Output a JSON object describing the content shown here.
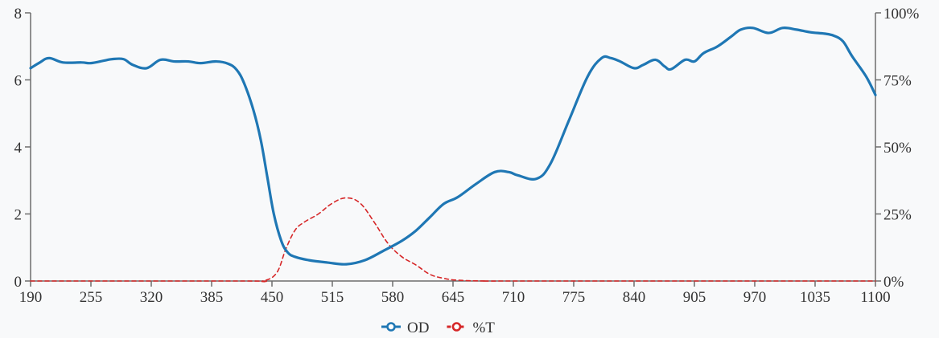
{
  "chart_data": {
    "type": "line",
    "title": "",
    "xlabel": "",
    "ylabel": "",
    "y2label": "",
    "grid": false,
    "legend_position": "bottom-center",
    "xlim": [
      190,
      1100
    ],
    "ylim": [
      0,
      8
    ],
    "y2lim": [
      0,
      100
    ],
    "x_ticks": [
      190,
      255,
      320,
      385,
      450,
      515,
      580,
      645,
      710,
      775,
      840,
      905,
      970,
      1035,
      1100
    ],
    "y_ticks": [
      0,
      2,
      4,
      6,
      8
    ],
    "y2_ticks": [
      0,
      25,
      50,
      75,
      100
    ],
    "y2_tick_labels": [
      "0%",
      "25%",
      "50%",
      "75%",
      "100%"
    ],
    "series": [
      {
        "name": "OD",
        "axis": "left",
        "color": "#1f77b4",
        "style": "solid",
        "x": [
          190,
          200,
          210,
          225,
          245,
          255,
          270,
          278,
          290,
          300,
          315,
          330,
          345,
          360,
          373,
          390,
          403,
          412,
          420,
          430,
          438,
          445,
          452,
          460,
          467,
          475,
          490,
          510,
          530,
          550,
          570,
          590,
          605,
          620,
          635,
          650,
          670,
          690,
          705,
          715,
          735,
          750,
          770,
          790,
          805,
          815,
          825,
          840,
          850,
          863,
          873,
          880,
          895,
          905,
          915,
          930,
          945,
          955,
          968,
          985,
          1000,
          1015,
          1030,
          1045,
          1055,
          1065,
          1075,
          1090,
          1100
        ],
        "y": [
          6.35,
          6.52,
          6.65,
          6.52,
          6.52,
          6.5,
          6.58,
          6.62,
          6.62,
          6.45,
          6.35,
          6.6,
          6.55,
          6.55,
          6.5,
          6.55,
          6.48,
          6.3,
          5.9,
          5.1,
          4.2,
          3.1,
          2.0,
          1.2,
          0.85,
          0.72,
          0.62,
          0.55,
          0.5,
          0.62,
          0.9,
          1.2,
          1.5,
          1.9,
          2.3,
          2.5,
          2.9,
          3.25,
          3.25,
          3.15,
          3.05,
          3.5,
          4.8,
          6.1,
          6.65,
          6.65,
          6.55,
          6.35,
          6.45,
          6.6,
          6.4,
          6.32,
          6.6,
          6.55,
          6.8,
          7.0,
          7.3,
          7.5,
          7.55,
          7.4,
          7.55,
          7.5,
          7.42,
          7.38,
          7.32,
          7.15,
          6.7,
          6.1,
          5.55
        ]
      },
      {
        "name": "%T",
        "axis": "right",
        "color": "#d62728",
        "style": "dashed",
        "x": [
          190,
          420,
          440,
          455,
          465,
          475,
          485,
          500,
          515,
          530,
          545,
          560,
          575,
          590,
          605,
          620,
          635,
          650,
          680,
          720,
          1100
        ],
        "y": [
          0,
          0,
          0,
          3,
          12,
          19,
          22,
          25,
          29,
          31,
          29,
          22,
          14,
          9,
          6,
          2.5,
          1,
          0.3,
          0,
          0,
          0
        ]
      }
    ]
  }
}
